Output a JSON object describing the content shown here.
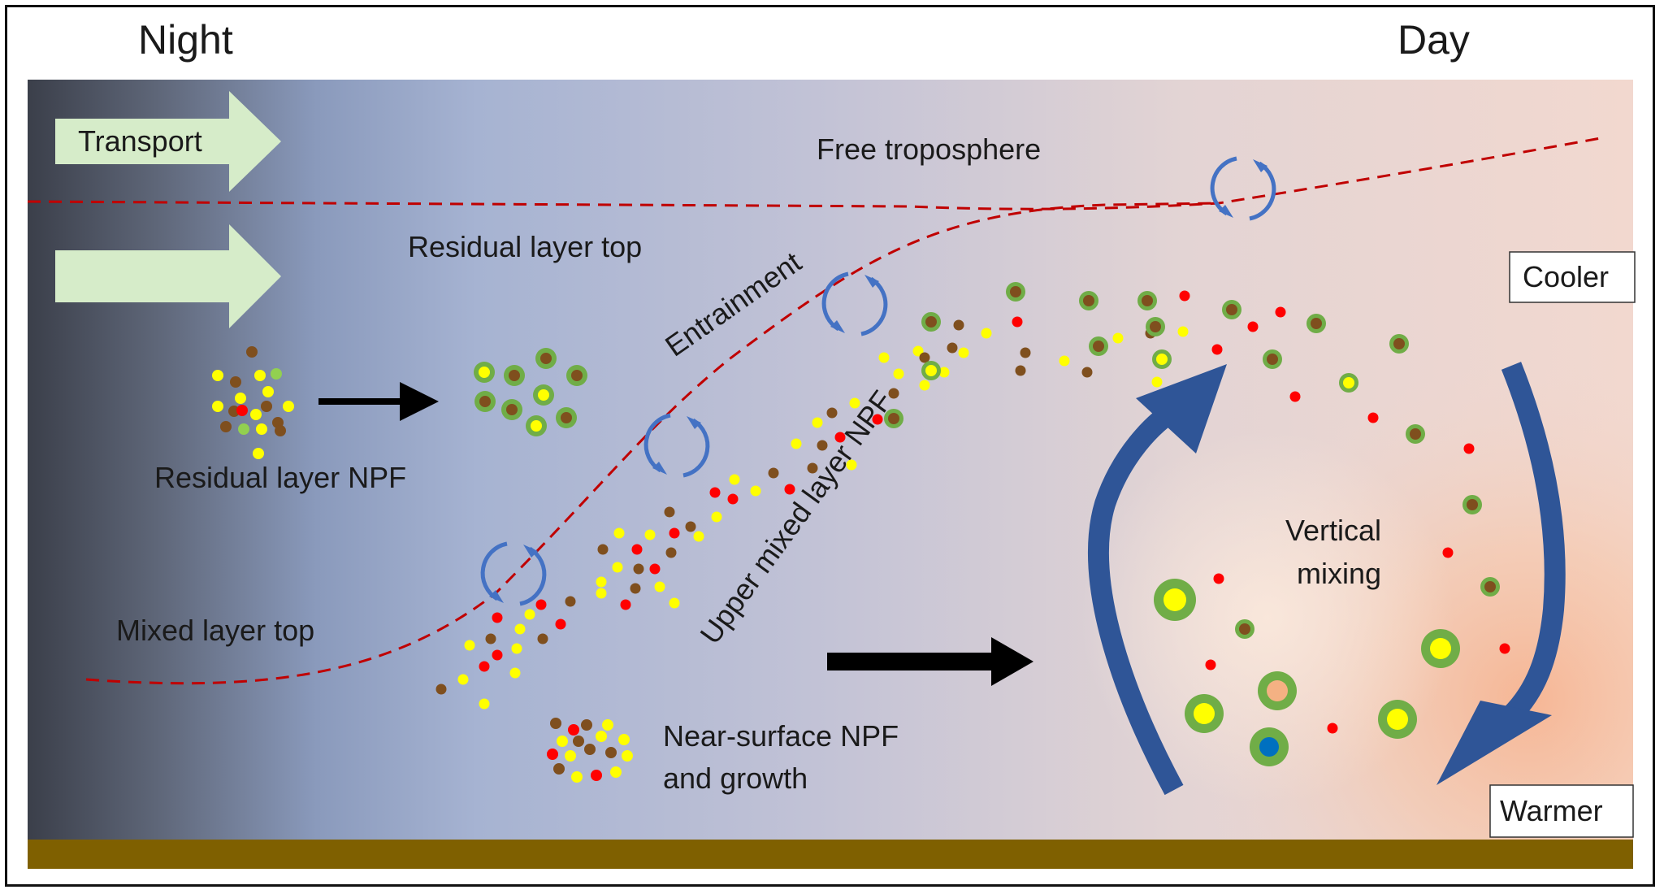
{
  "header": {
    "night": "Night",
    "day": "Day"
  },
  "labels": {
    "transport": "Transport",
    "free_troposphere": "Free troposphere",
    "residual_layer_top": "Residual layer top",
    "entrainment": "Entrainment",
    "residual_layer_npf": "Residual layer NPF",
    "upper_mixed_layer_npf": "Upper mixed layer NPF",
    "mixed_layer_top": "Mixed layer top",
    "near_surface_npf_line1": "Near-surface NPF",
    "near_surface_npf_line2": "and growth",
    "vertical_mixing_line1": "Vertical",
    "vertical_mixing_line2": "mixing",
    "cooler": "Cooler",
    "warmer": "Warmer"
  },
  "colors": {
    "dashed_boundary": "#c00000",
    "transport_arrow": "#d6ecc9",
    "mixing_arrow": "#2f5597",
    "ground": "#7f6000",
    "particle_yellow": "#ffff00",
    "particle_brown": "#7f4f1e",
    "particle_red": "#ff0000",
    "particle_light_green": "#92d050",
    "coating_green": "#70ad47",
    "core_orange": "#f4b183",
    "core_blue": "#0070c0",
    "entrainment_arrow": "#4472c4"
  }
}
